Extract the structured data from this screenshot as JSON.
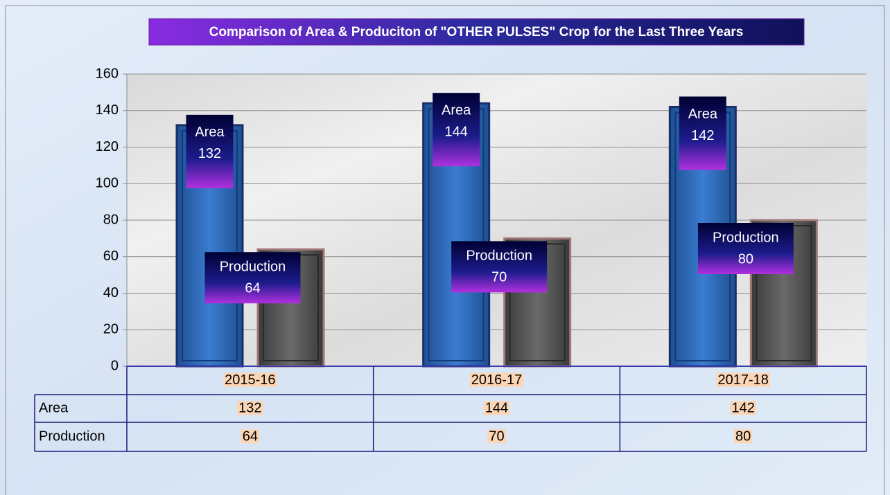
{
  "chart_data": {
    "type": "bar",
    "title": "Comparison of Area & Produciton of  \"OTHER PULSES\" Crop  for the Last Three Years",
    "categories": [
      "2015-16",
      "2016-17",
      "2017-18"
    ],
    "series": [
      {
        "name": "Area",
        "color": "#2f6cb8",
        "values": [
          132,
          144,
          142
        ]
      },
      {
        "name": "Production",
        "color": "#555555",
        "values": [
          64,
          70,
          80
        ]
      }
    ],
    "ylim": [
      0,
      160
    ],
    "yticks": [
      0,
      20,
      40,
      60,
      80,
      100,
      120,
      140,
      160
    ],
    "grid": true,
    "data_table": true
  }
}
